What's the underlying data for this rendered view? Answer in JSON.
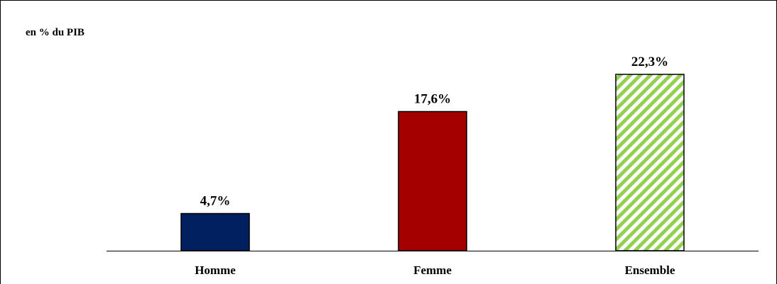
{
  "chart_data": {
    "type": "bar",
    "unit_label": "en % du PIB",
    "categories": [
      "Homme",
      "Femme",
      "Ensemble"
    ],
    "values": [
      4.7,
      17.6,
      22.3
    ],
    "data_labels": [
      "4,7%",
      "17,6%",
      "22,3%"
    ],
    "colors": [
      "#002060",
      "#A50000",
      "#92D050"
    ],
    "fill_patterns": [
      "solid",
      "solid",
      "diagonal-stripes"
    ],
    "ylim": [
      0,
      25
    ],
    "grid": false,
    "legend": "none"
  }
}
